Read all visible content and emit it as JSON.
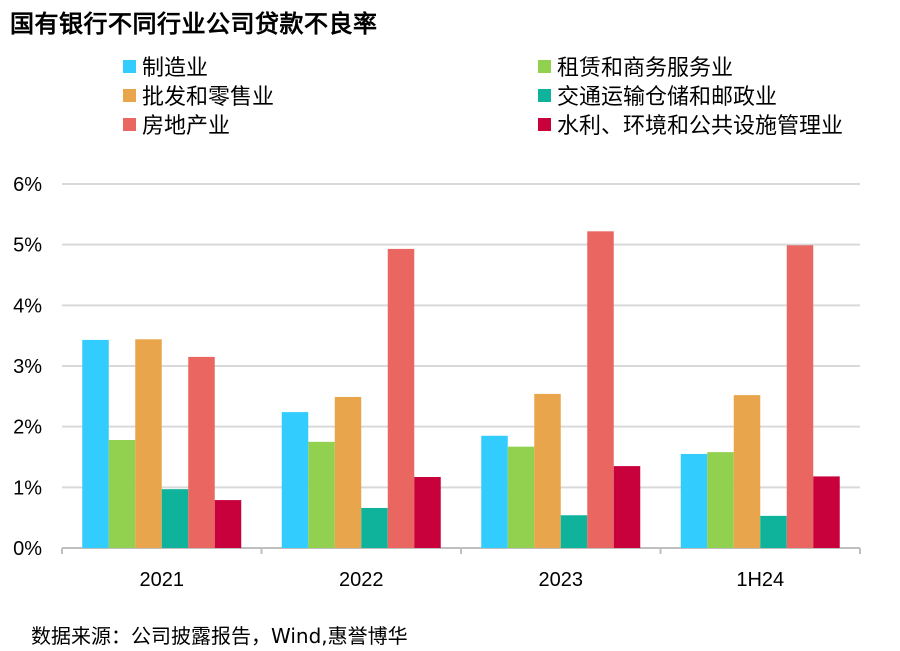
{
  "chart_data": {
    "type": "bar",
    "title": "国有银行不同行业公司贷款不良率",
    "categories": [
      "2021",
      "2022",
      "2023",
      "1H24"
    ],
    "series": [
      {
        "name": "制造业",
        "color": "#33ccff",
        "values": [
          3.43,
          2.24,
          1.85,
          1.55
        ]
      },
      {
        "name": "租赁和商务服务业",
        "color": "#92d050",
        "values": [
          1.78,
          1.75,
          1.67,
          1.58
        ]
      },
      {
        "name": "批发和零售业",
        "color": "#e8a54b",
        "values": [
          3.44,
          2.49,
          2.54,
          2.52
        ]
      },
      {
        "name": "交通运输仓储和邮政业",
        "color": "#0fb39c",
        "values": [
          0.97,
          0.66,
          0.54,
          0.53
        ]
      },
      {
        "name": "房地产业",
        "color": "#ea6660",
        "values": [
          3.15,
          4.93,
          5.22,
          4.99
        ]
      },
      {
        "name": "水利、环境和公共设施管理业",
        "color": "#c8003c",
        "values": [
          0.79,
          1.17,
          1.35,
          1.18
        ]
      }
    ],
    "y_ticks": [
      "0%",
      "1%",
      "2%",
      "3%",
      "4%",
      "5%",
      "6%"
    ],
    "ylim": [
      0,
      6
    ],
    "grid": true,
    "legend_position": "top",
    "xlabel": "",
    "ylabel": ""
  },
  "source_note": "数据来源：公司披露报告，Wind,惠誉博华"
}
